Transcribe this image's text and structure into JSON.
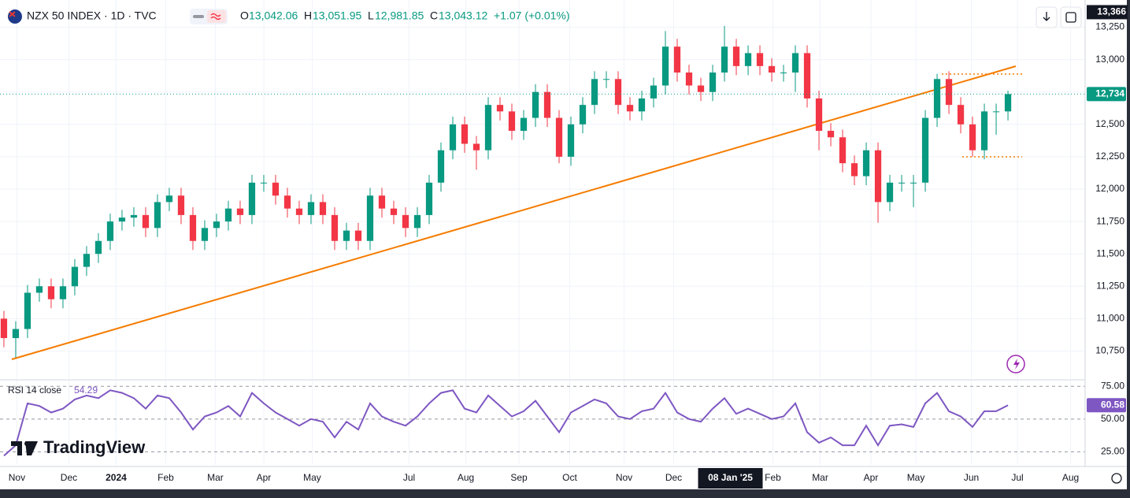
{
  "header": {
    "title": "NZX 50 INDEX · 1D · TVC",
    "open_label": "O",
    "open": "13,042.06",
    "high_label": "H",
    "high": "13,051.95",
    "low_label": "L",
    "low": "12,981.85",
    "close_label": "C",
    "close": "13,043.12",
    "change": "+1.07 (+0.01%)"
  },
  "watermark": "TradingView",
  "chart_data": [
    {
      "type": "candlestick",
      "up_color": "#089981",
      "down_color": "#f23645",
      "grid": true,
      "xlim": [
        -0.33,
        91.53
      ],
      "ylim": [
        10540,
        13460
      ],
      "yticks": [
        {
          "value": 10750,
          "label": "10,750"
        },
        {
          "value": 11000,
          "label": "11,000"
        },
        {
          "value": 11250,
          "label": "11,250"
        },
        {
          "value": 11500,
          "label": "11,500"
        },
        {
          "value": 11750,
          "label": "11,750"
        },
        {
          "value": 12000,
          "label": "12,000"
        },
        {
          "value": 12250,
          "label": "12,250"
        },
        {
          "value": 12500,
          "label": "12,500"
        },
        {
          "value": 12750,
          "label": "12,750"
        },
        {
          "value": 13000,
          "label": "13,000"
        },
        {
          "value": 13250,
          "label": "13,250"
        }
      ],
      "xticks": [
        {
          "value": 1.1,
          "label": "Nov"
        },
        {
          "value": 5.5,
          "label": "Dec"
        },
        {
          "value": 9.5,
          "label": "2024"
        },
        {
          "value": 13.7,
          "label": "Feb"
        },
        {
          "value": 17.9,
          "label": "Mar"
        },
        {
          "value": 22,
          "label": "Apr"
        },
        {
          "value": 26.1,
          "label": "May"
        },
        {
          "value": 34.3,
          "label": "Jul"
        },
        {
          "value": 39.1,
          "label": "Aug"
        },
        {
          "value": 43.6,
          "label": "Sep"
        },
        {
          "value": 47.9,
          "label": "Oct"
        },
        {
          "value": 52.5,
          "label": "Nov"
        },
        {
          "value": 56.7,
          "label": "Dec"
        },
        {
          "value": 65.1,
          "label": "Feb"
        },
        {
          "value": 69.1,
          "label": "Mar"
        },
        {
          "value": 73.4,
          "label": "Apr"
        },
        {
          "value": 77.2,
          "label": "May"
        },
        {
          "value": 81.9,
          "label": "Jun"
        },
        {
          "value": 85.8,
          "label": "Jul"
        },
        {
          "value": 90.3,
          "label": "Aug"
        }
      ],
      "crosshair_x": {
        "value": 61.5,
        "label": "08 Jan '25"
      },
      "crosshair_y": {
        "value": 13366,
        "label": "13,366"
      },
      "last_value_label": "12,734",
      "open": [
        11000,
        10850,
        10920,
        11200,
        11250,
        11150,
        11250,
        11400,
        11500,
        11600,
        11750,
        11780,
        11800,
        11700,
        11900,
        11950,
        11800,
        11600,
        11700,
        11750,
        11850,
        11800,
        12050,
        12050,
        11950,
        11850,
        11800,
        11900,
        11800,
        11600,
        11680,
        11600,
        11950,
        11850,
        11800,
        11700,
        11800,
        12050,
        12300,
        12500,
        12350,
        12300,
        12650,
        12600,
        12450,
        12550,
        12750,
        12550,
        12250,
        12500,
        12650,
        12850,
        12850,
        12650,
        12600,
        12700,
        12800,
        13100,
        12900,
        12800,
        12750,
        12900,
        13100,
        12950,
        13050,
        12950,
        12900,
        12900,
        13050,
        12700,
        12450,
        12400,
        12200,
        12100,
        12300,
        11900,
        12050,
        12050,
        12050,
        12550,
        12850,
        12650,
        12500,
        12300,
        12600,
        12600
      ],
      "high": [
        11060,
        10980,
        11260,
        11310,
        11310,
        11310,
        11460,
        11560,
        11660,
        11810,
        11840,
        11860,
        11860,
        11960,
        12010,
        12010,
        11860,
        11760,
        11810,
        11910,
        11910,
        12110,
        12110,
        12110,
        12010,
        11910,
        11960,
        11960,
        11860,
        11740,
        11740,
        12010,
        12010,
        11910,
        11860,
        11860,
        12110,
        12360,
        12560,
        12560,
        12410,
        12710,
        12710,
        12660,
        12610,
        12810,
        12810,
        12610,
        12560,
        12710,
        12910,
        12910,
        12910,
        12710,
        12760,
        12860,
        13220,
        13160,
        12960,
        12860,
        12960,
        13260,
        13160,
        13110,
        13110,
        13010,
        12960,
        13110,
        13110,
        12760,
        12510,
        12460,
        12260,
        12360,
        12360,
        12110,
        12110,
        12110,
        12610,
        12890,
        12910,
        12710,
        12560,
        12660,
        12660,
        12760
      ],
      "low": [
        10780,
        10700,
        10850,
        11130,
        11080,
        11080,
        11180,
        11330,
        11430,
        11530,
        11680,
        11710,
        11630,
        11630,
        11830,
        11730,
        11530,
        11530,
        11630,
        11680,
        11730,
        11730,
        11980,
        11880,
        11780,
        11730,
        11730,
        11730,
        11530,
        11530,
        11530,
        11530,
        11780,
        11730,
        11630,
        11630,
        11730,
        11980,
        12230,
        12280,
        12150,
        12230,
        12530,
        12380,
        12380,
        12480,
        12480,
        12200,
        12180,
        12430,
        12580,
        12780,
        12580,
        12530,
        12530,
        12630,
        12730,
        12830,
        12730,
        12680,
        12680,
        12830,
        12880,
        12880,
        12880,
        12830,
        12830,
        12750,
        12630,
        12300,
        12330,
        12130,
        12030,
        12030,
        11740,
        11830,
        11980,
        11860,
        11980,
        12480,
        12580,
        12430,
        12250,
        12230,
        12420,
        12530
      ],
      "close": [
        10850,
        10920,
        11200,
        11250,
        11150,
        11250,
        11400,
        11500,
        11600,
        11750,
        11780,
        11800,
        11700,
        11900,
        11950,
        11800,
        11600,
        11700,
        11750,
        11850,
        11800,
        12050,
        12050,
        11950,
        11850,
        11800,
        11900,
        11800,
        11600,
        11680,
        11600,
        11950,
        11850,
        11800,
        11700,
        11800,
        12050,
        12300,
        12500,
        12350,
        12300,
        12650,
        12600,
        12450,
        12550,
        12750,
        12550,
        12250,
        12500,
        12650,
        12850,
        12850,
        12650,
        12600,
        12700,
        12800,
        13100,
        12900,
        12800,
        12750,
        12900,
        13100,
        12950,
        13050,
        12950,
        12900,
        12900,
        13050,
        12700,
        12450,
        12400,
        12200,
        12100,
        12300,
        11900,
        12050,
        12050,
        12050,
        12550,
        12850,
        12650,
        12500,
        12300,
        12600,
        12600,
        12734
      ]
    },
    {
      "type": "line",
      "title": "RSI 14 close",
      "header_value": "54.29",
      "color": "#7e57c2",
      "ylim": [
        15,
        80
      ],
      "yticks": [
        {
          "value": 25,
          "label": "25.00"
        },
        {
          "value": 50,
          "label": "50.00"
        },
        {
          "value": 75,
          "label": "75.00"
        }
      ],
      "last_value_label": "60.58",
      "values": [
        22,
        30,
        62,
        60,
        55,
        58,
        65,
        68,
        66,
        72,
        70,
        66,
        58,
        68,
        66,
        55,
        42,
        52,
        55,
        60,
        52,
        70,
        62,
        55,
        50,
        45,
        50,
        48,
        36,
        48,
        42,
        62,
        52,
        48,
        45,
        52,
        62,
        70,
        72,
        58,
        55,
        68,
        60,
        52,
        56,
        64,
        52,
        40,
        55,
        60,
        65,
        62,
        52,
        50,
        56,
        58,
        70,
        55,
        50,
        48,
        58,
        66,
        54,
        58,
        54,
        50,
        52,
        62,
        40,
        32,
        36,
        30,
        30,
        45,
        30,
        45,
        46,
        44,
        62,
        70,
        56,
        52,
        44,
        56,
        56,
        60.58
      ]
    }
  ]
}
